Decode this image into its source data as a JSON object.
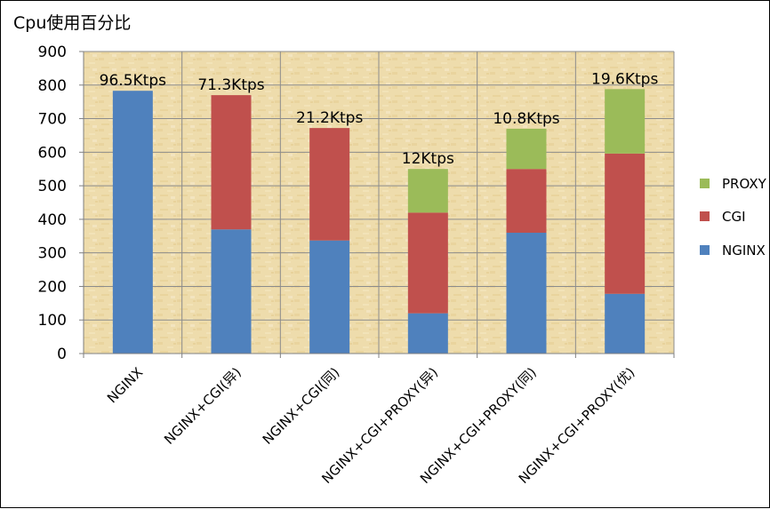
{
  "chart_data": {
    "type": "bar",
    "stacked": true,
    "title": "Cpu使用百分比",
    "categories": [
      "NGINX",
      "NGINX+CGI(异)",
      "NGINX+CGI(同)",
      "NGINX+CGI+PROXY(异)",
      "NGINX+CGI+PROXY(同)",
      "NGINX+CGI+PROXY(优)"
    ],
    "series": [
      {
        "name": "NGINX",
        "color": "#4F81BD",
        "values": [
          783,
          370,
          337,
          120,
          360,
          178
        ]
      },
      {
        "name": "CGI",
        "color": "#C0504D",
        "values": [
          0,
          400,
          335,
          300,
          190,
          418
        ]
      },
      {
        "name": "PROXY",
        "color": "#9BBB59",
        "values": [
          0,
          0,
          0,
          130,
          120,
          192
        ]
      }
    ],
    "data_labels": [
      "96.5Ktps",
      "71.3Ktps",
      "21.2Ktps",
      "12Ktps",
      "10.8Ktps",
      "19.6Ktps"
    ],
    "ylim": [
      0,
      900
    ],
    "yticks": [
      0,
      100,
      200,
      300,
      400,
      500,
      600,
      700,
      800,
      900
    ],
    "xlabel": "",
    "ylabel": "",
    "grid": true,
    "legend_position": "right",
    "legend_order": [
      "PROXY",
      "CGI",
      "NGINX"
    ],
    "plot_background": "parchment-texture"
  }
}
